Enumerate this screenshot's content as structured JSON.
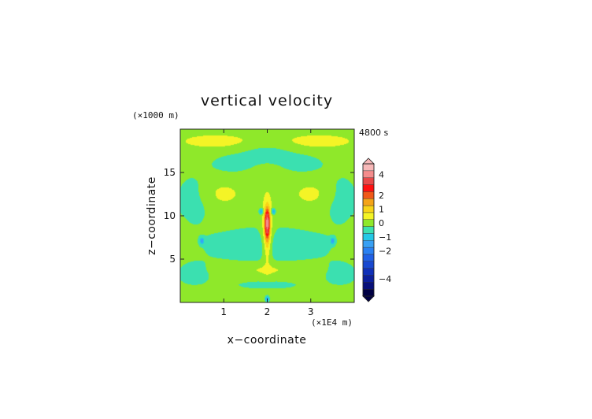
{
  "chart_data": {
    "type": "heatmap",
    "title": "vertical velocity",
    "time_label": "4800 s",
    "xlabel": "x−coordinate",
    "ylabel": "z−coordinate",
    "x_unit_label": "(×1E4 m)",
    "y_unit_label": "(×1000 m)",
    "xlim": [
      0,
      4
    ],
    "ylim": [
      0,
      20
    ],
    "x_ticks": [
      1,
      2,
      3
    ],
    "y_ticks": [
      5,
      10,
      15
    ],
    "grid": false,
    "legend": "right",
    "colorbar": {
      "ticks": [
        {
          "value": 4,
          "label": "4"
        },
        {
          "value": 2,
          "label": "2"
        },
        {
          "value": 1,
          "label": "1"
        },
        {
          "value": 0,
          "label": "0"
        },
        {
          "value": -1,
          "label": "−1"
        },
        {
          "value": -2,
          "label": "−2"
        },
        {
          "value": -4,
          "label": "−4"
        }
      ],
      "levels": [
        -5,
        -4.5,
        -4,
        -3.5,
        -3,
        -2.5,
        -2,
        -1.5,
        -1,
        -0.5,
        0,
        0.5,
        1,
        1.5,
        2,
        2.5,
        3,
        4,
        5
      ],
      "colors": [
        "#000044",
        "#08107a",
        "#0c1f9c",
        "#1030b8",
        "#1848d0",
        "#2060e6",
        "#2a80f2",
        "#38a0f4",
        "#24c8e6",
        "#3be0b0",
        "#8fe82a",
        "#f4f426",
        "#f8d418",
        "#f4a418",
        "#f05818",
        "#ff1010",
        "#e84848",
        "#f48c8c",
        "#f8b8b8"
      ]
    },
    "background_value": 0.25,
    "features": [
      {
        "name": "updraft core",
        "x": 2.0,
        "z": 9.0,
        "w_max": 3.0
      },
      {
        "name": "left downdraft",
        "x": 1.86,
        "z": 10.5,
        "w": -1.0
      },
      {
        "name": "right downdraft",
        "x": 2.14,
        "z": 10.5,
        "w": -1.0
      },
      {
        "name": "left side downdraft",
        "x": 0.5,
        "z": 7.1,
        "w": -1.0
      },
      {
        "name": "right side downdraft",
        "x": 3.5,
        "z": 7.1,
        "w": -1.0
      },
      {
        "name": "surface downdraft",
        "x": 2.0,
        "z": 0.4,
        "w": -1.0
      }
    ]
  }
}
